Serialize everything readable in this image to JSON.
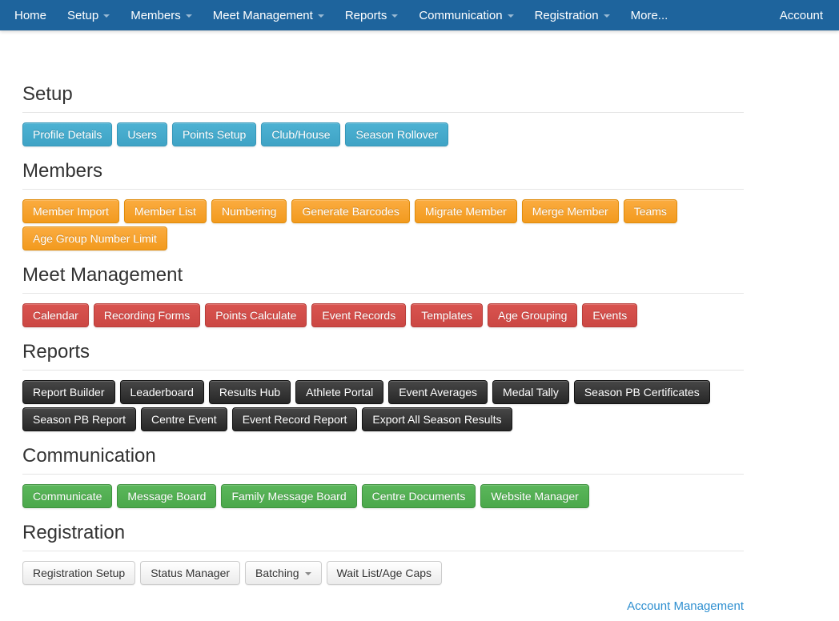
{
  "navbar": {
    "items": [
      {
        "label": "Home",
        "caret": false
      },
      {
        "label": "Setup",
        "caret": true
      },
      {
        "label": "Members",
        "caret": true
      },
      {
        "label": "Meet Management",
        "caret": true
      },
      {
        "label": "Reports",
        "caret": true
      },
      {
        "label": "Communication",
        "caret": true
      },
      {
        "label": "Registration",
        "caret": true
      },
      {
        "label": "More...",
        "caret": false
      }
    ],
    "account_label": "Account"
  },
  "sections": [
    {
      "title": "Setup",
      "style": "info",
      "buttons": [
        {
          "label": "Profile Details"
        },
        {
          "label": "Users"
        },
        {
          "label": "Points Setup"
        },
        {
          "label": "Club/House"
        },
        {
          "label": "Season Rollover"
        }
      ]
    },
    {
      "title": "Members",
      "style": "warning",
      "buttons": [
        {
          "label": "Member Import"
        },
        {
          "label": "Member List"
        },
        {
          "label": "Numbering"
        },
        {
          "label": "Generate Barcodes"
        },
        {
          "label": "Migrate Member"
        },
        {
          "label": "Merge Member"
        },
        {
          "label": "Teams"
        },
        {
          "label": "Age Group Number Limit"
        }
      ]
    },
    {
      "title": "Meet Management",
      "style": "danger",
      "buttons": [
        {
          "label": "Calendar"
        },
        {
          "label": "Recording Forms"
        },
        {
          "label": "Points Calculate"
        },
        {
          "label": "Event Records"
        },
        {
          "label": "Templates"
        },
        {
          "label": "Age Grouping"
        },
        {
          "label": "Events"
        }
      ]
    },
    {
      "title": "Reports",
      "style": "dark",
      "buttons": [
        {
          "label": "Report Builder"
        },
        {
          "label": "Leaderboard"
        },
        {
          "label": "Results Hub"
        },
        {
          "label": "Athlete Portal"
        },
        {
          "label": "Event Averages"
        },
        {
          "label": "Medal Tally"
        },
        {
          "label": "Season PB Certificates"
        },
        {
          "label": "Season PB Report"
        },
        {
          "label": "Centre Event"
        },
        {
          "label": "Event Record Report"
        },
        {
          "label": "Export All Season Results"
        }
      ]
    },
    {
      "title": "Communication",
      "style": "success",
      "buttons": [
        {
          "label": "Communicate"
        },
        {
          "label": "Message Board"
        },
        {
          "label": "Family Message Board"
        },
        {
          "label": "Centre Documents"
        },
        {
          "label": "Website Manager"
        }
      ]
    },
    {
      "title": "Registration",
      "style": "default",
      "buttons": [
        {
          "label": "Registration Setup"
        },
        {
          "label": "Status Manager"
        },
        {
          "label": "Batching",
          "caret": true
        },
        {
          "label": "Wait List/Age Caps"
        }
      ]
    }
  ],
  "footer": {
    "account_management_label": "Account Management"
  },
  "colors": {
    "navbar_bg": "#1e649d",
    "heading": "#333333",
    "divider": "#e5e5e5",
    "link": "#2e8fd0",
    "btn_info": {
      "top": "#4db2d3",
      "bottom": "#3fa3c5",
      "border": "#3597b9"
    },
    "btn_warning": {
      "top": "#fbac40",
      "bottom": "#f29a1e",
      "border": "#e08c0b"
    },
    "btn_danger": {
      "top": "#d95450",
      "bottom": "#cb4743",
      "border": "#b83d39"
    },
    "btn_dark": {
      "top": "#474747",
      "bottom": "#272727",
      "border": "#131313"
    },
    "btn_success": {
      "top": "#5bb75b",
      "bottom": "#4ba84b",
      "border": "#3f923f"
    },
    "btn_default": {
      "top": "#ffffff",
      "bottom": "#ebebeb",
      "border": "#cccccc",
      "text": "#333333"
    }
  }
}
